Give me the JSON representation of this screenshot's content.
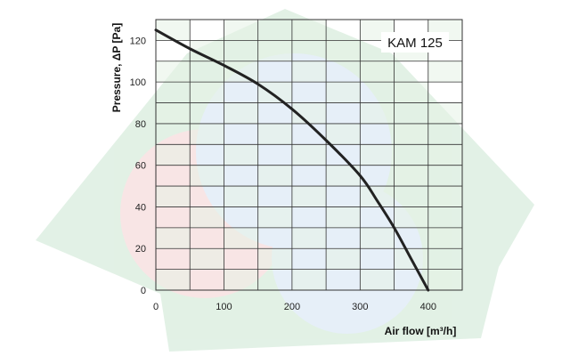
{
  "chart_data": {
    "type": "line",
    "title": "",
    "annotation": "KAM 125",
    "xlabel": "Air flow [m³/h]",
    "ylabel": "Pressure, ΔP [Pa]",
    "xlim": [
      0,
      450
    ],
    "ylim": [
      0,
      130
    ],
    "x_ticks": [
      0,
      100,
      200,
      300,
      400
    ],
    "y_ticks": [
      0,
      20,
      40,
      60,
      80,
      100,
      120
    ],
    "x_grid_step": 50,
    "y_grid_step": 10,
    "grid": true,
    "legend": "none",
    "series": [
      {
        "x": [
          0,
          50,
          100,
          150,
          200,
          250,
          300,
          325,
          350,
          375,
          400
        ],
        "y": [
          125,
          116,
          108,
          99,
          87,
          72,
          55,
          43,
          30,
          15,
          0
        ]
      }
    ]
  },
  "colors": {
    "grid_shade": "#e6f2e6",
    "grid_line": "#333333",
    "curve": "#222222",
    "watermark_green": "#dff0e3",
    "watermark_blue": "#e4eef8",
    "watermark_red": "#f8e3e3"
  }
}
